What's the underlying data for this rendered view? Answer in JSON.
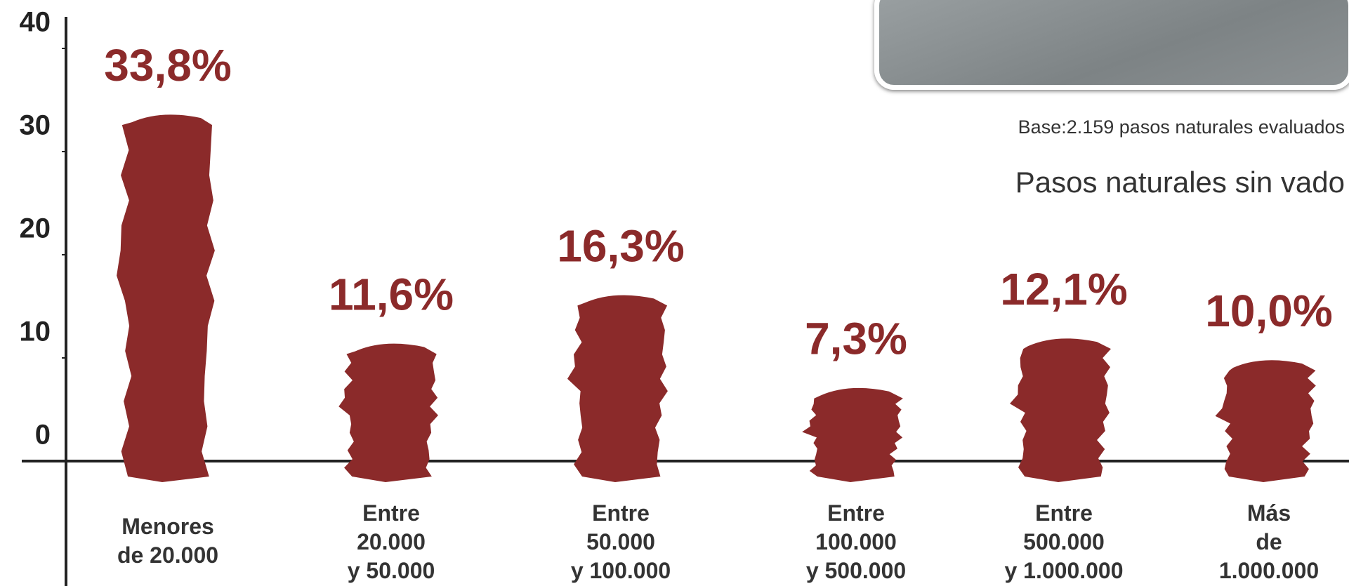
{
  "chart_data": {
    "type": "bar",
    "categories": [
      "Menores\nde 20.000",
      "Entre\n20.000\ny 50.000",
      "Entre\n50.000\ny 100.000",
      "Entre\n100.000\ny 500.000",
      "Entre\n500.000\ny 1.000.000",
      "Más\nde\n1.000.000"
    ],
    "values": [
      33.8,
      11.6,
      16.3,
      7.3,
      12.1,
      10.0
    ],
    "value_labels": [
      "33,8%",
      "11,6%",
      "16,3%",
      "7,3%",
      "12,1%",
      "10,0%"
    ],
    "color": "#8b2a2a",
    "ylim": [
      0,
      40
    ],
    "yticks": [
      0,
      10,
      20,
      30,
      40
    ],
    "grid": false,
    "annotations": [
      "Base:2.159 pasos naturales evaluados",
      "Pasos naturales sin vado"
    ]
  }
}
